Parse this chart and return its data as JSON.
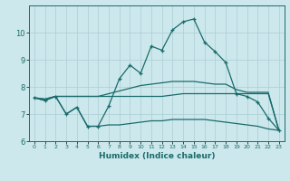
{
  "xlabel": "Humidex (Indice chaleur)",
  "ylabel": "",
  "background_color": "#cce8ec",
  "grid_color": "#aacdd4",
  "line_color": "#1a6b6b",
  "xlim": [
    -0.5,
    23.5
  ],
  "ylim": [
    6,
    11
  ],
  "yticks": [
    6,
    7,
    8,
    9,
    10
  ],
  "xticks": [
    0,
    1,
    2,
    3,
    4,
    5,
    6,
    7,
    8,
    9,
    10,
    11,
    12,
    13,
    14,
    15,
    16,
    17,
    18,
    19,
    20,
    21,
    22,
    23
  ],
  "line1_x": [
    0,
    1,
    2,
    3,
    4,
    5,
    6,
    7,
    8,
    9,
    10,
    11,
    12,
    13,
    14,
    15,
    16,
    17,
    18,
    19,
    20,
    21,
    22,
    23
  ],
  "line1_y": [
    7.6,
    7.5,
    7.65,
    7.0,
    7.25,
    6.55,
    6.55,
    7.3,
    8.3,
    8.8,
    8.5,
    9.5,
    9.35,
    10.1,
    10.4,
    10.5,
    9.65,
    9.3,
    8.9,
    7.75,
    7.65,
    7.45,
    6.85,
    6.4
  ],
  "line2_x": [
    0,
    1,
    2,
    3,
    4,
    5,
    6,
    7,
    8,
    9,
    10,
    11,
    12,
    13,
    14,
    15,
    16,
    17,
    18,
    19,
    20,
    21,
    22,
    23
  ],
  "line2_y": [
    7.6,
    7.55,
    7.65,
    7.65,
    7.65,
    7.65,
    7.65,
    7.65,
    7.65,
    7.65,
    7.65,
    7.65,
    7.65,
    7.7,
    7.75,
    7.75,
    7.75,
    7.75,
    7.75,
    7.75,
    7.75,
    7.75,
    7.75,
    6.4
  ],
  "line3_x": [
    0,
    1,
    2,
    3,
    4,
    5,
    6,
    7,
    8,
    9,
    10,
    11,
    12,
    13,
    14,
    15,
    16,
    17,
    18,
    19,
    20,
    21,
    22,
    23
  ],
  "line3_y": [
    7.6,
    7.5,
    7.65,
    7.0,
    7.25,
    6.55,
    6.55,
    6.6,
    6.6,
    6.65,
    6.7,
    6.75,
    6.75,
    6.8,
    6.8,
    6.8,
    6.8,
    6.75,
    6.7,
    6.65,
    6.6,
    6.55,
    6.45,
    6.4
  ],
  "line4_x": [
    0,
    1,
    2,
    3,
    4,
    5,
    6,
    7,
    8,
    9,
    10,
    11,
    12,
    13,
    14,
    15,
    16,
    17,
    18,
    19,
    20,
    21,
    22,
    23
  ],
  "line4_y": [
    7.6,
    7.55,
    7.65,
    7.65,
    7.65,
    7.65,
    7.65,
    7.75,
    7.85,
    7.95,
    8.05,
    8.1,
    8.15,
    8.2,
    8.2,
    8.2,
    8.15,
    8.1,
    8.1,
    7.9,
    7.8,
    7.8,
    7.8,
    6.4
  ]
}
